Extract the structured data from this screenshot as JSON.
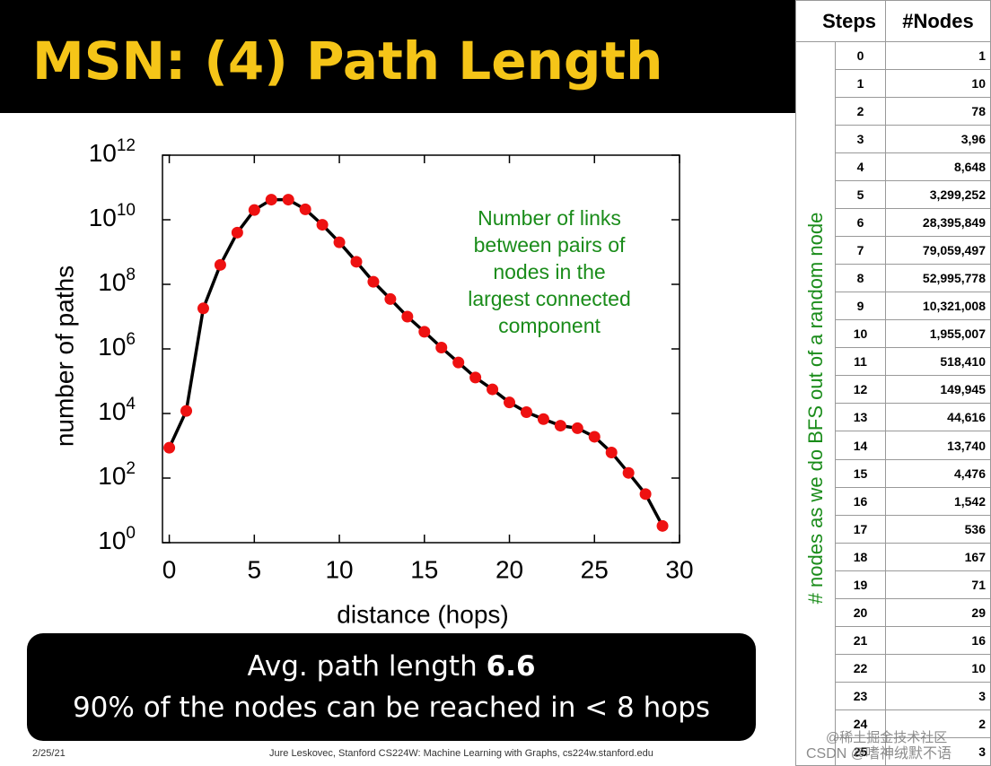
{
  "header": {
    "title": "MSN: (4) Path Length"
  },
  "chart_data": {
    "type": "line",
    "log_y": true,
    "x_label": "distance (hops)",
    "y_label": "number of paths",
    "annotation": [
      "Number of links",
      "between pairs of",
      "nodes in the",
      "largest connected",
      "component"
    ],
    "annotation_color": "#1a8c1a",
    "x": [
      0,
      1,
      2,
      3,
      4,
      5,
      6,
      7,
      8,
      9,
      10,
      11,
      12,
      13,
      14,
      15,
      16,
      17,
      18,
      19,
      20,
      21,
      22,
      23,
      24,
      25,
      26,
      27,
      28,
      29
    ],
    "series": [
      {
        "name": "paths",
        "color": "#000000",
        "marker_color": "#ee1111",
        "values": [
          870,
          12000,
          18000000,
          400000000,
          4000000000,
          20000000000,
          42000000000,
          42000000000,
          21000000000,
          7000000000,
          2000000000,
          500000000,
          120000000,
          35000000,
          10000000,
          3400000,
          1100000,
          380000,
          130000,
          56000,
          22000,
          11000,
          6700,
          4200,
          3500,
          1900,
          620,
          145,
          32,
          3.3
        ]
      }
    ],
    "xlim": [
      -0.4,
      30
    ],
    "xticks": [
      0,
      5,
      10,
      15,
      20,
      25,
      30
    ],
    "ylim": [
      1,
      1000000000000
    ],
    "yticks": [
      {
        "value": 1,
        "label": "10",
        "sup": "0"
      },
      {
        "value": 100,
        "label": "10",
        "sup": "2"
      },
      {
        "value": 10000,
        "label": "10",
        "sup": "4"
      },
      {
        "value": 1000000,
        "label": "10",
        "sup": "6"
      },
      {
        "value": 100000000,
        "label": "10",
        "sup": "8"
      },
      {
        "value": 10000000000,
        "label": "10",
        "sup": "10"
      },
      {
        "value": 1000000000000,
        "label": "10",
        "sup": "12"
      }
    ]
  },
  "callout": {
    "line1": "Avg. path length ",
    "line1_bold": "6.6",
    "line2": "90% of the nodes can be reached in < 8 hops"
  },
  "table": {
    "side_label": "# nodes as we do BFS out of a random node",
    "headers": [
      "Steps",
      "#Nodes"
    ],
    "rows": [
      [
        "0",
        "1"
      ],
      [
        "1",
        "10"
      ],
      [
        "2",
        "78"
      ],
      [
        "3",
        "3,96"
      ],
      [
        "4",
        "8,648"
      ],
      [
        "5",
        "3,299,252"
      ],
      [
        "6",
        "28,395,849"
      ],
      [
        "7",
        "79,059,497"
      ],
      [
        "8",
        "52,995,778"
      ],
      [
        "9",
        "10,321,008"
      ],
      [
        "10",
        "1,955,007"
      ],
      [
        "11",
        "518,410"
      ],
      [
        "12",
        "149,945"
      ],
      [
        "13",
        "44,616"
      ],
      [
        "14",
        "13,740"
      ],
      [
        "15",
        "4,476"
      ],
      [
        "16",
        "1,542"
      ],
      [
        "17",
        "536"
      ],
      [
        "18",
        "167"
      ],
      [
        "19",
        "71"
      ],
      [
        "20",
        "29"
      ],
      [
        "21",
        "16"
      ],
      [
        "22",
        "10"
      ],
      [
        "23",
        "3"
      ],
      [
        "24",
        "2"
      ],
      [
        "25",
        "3"
      ]
    ]
  },
  "footer": {
    "date": "2/25/21",
    "credit": "Jure Leskovec, Stanford CS224W: Machine Learning with Graphs, cs224w.stanford.edu"
  },
  "watermark": [
    "@稀土掘金技术社区",
    "CSDN @嗜神绒默不语"
  ]
}
